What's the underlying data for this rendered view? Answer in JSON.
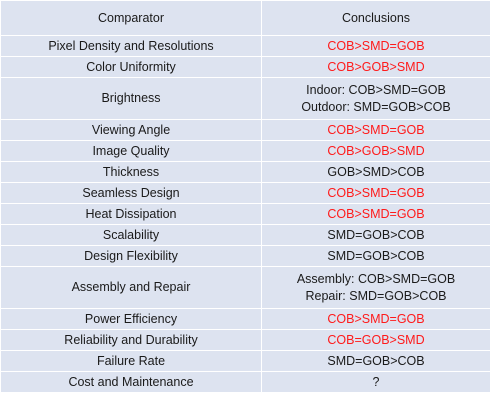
{
  "header": {
    "col1": "Comparator",
    "col2": "Conclusions"
  },
  "colors": {
    "red_conclusion": "#ff1a1a",
    "normal_text": "#1a1a1a",
    "cell_background": "#dde3f0"
  },
  "rows": [
    {
      "comparator": "Pixel Density and Resolutions",
      "lines": [
        "COB>SMD=GOB"
      ],
      "red": true
    },
    {
      "comparator": "Color Uniformity",
      "lines": [
        "COB>GOB>SMD"
      ],
      "red": true
    },
    {
      "comparator": "Brightness",
      "lines": [
        "Indoor: COB>SMD=GOB",
        "Outdoor: SMD=GOB>COB"
      ],
      "red": false
    },
    {
      "comparator": "Viewing Angle",
      "lines": [
        "COB>SMD=GOB"
      ],
      "red": true
    },
    {
      "comparator": "Image Quality",
      "lines": [
        "COB>GOB>SMD"
      ],
      "red": true
    },
    {
      "comparator": "Thickness",
      "lines": [
        "GOB>SMD>COB"
      ],
      "red": false
    },
    {
      "comparator": "Seamless Design",
      "lines": [
        "COB>SMD=GOB"
      ],
      "red": true
    },
    {
      "comparator": "Heat Dissipation",
      "lines": [
        "COB>SMD=GOB"
      ],
      "red": true
    },
    {
      "comparator": "Scalability",
      "lines": [
        "SMD=GOB>COB"
      ],
      "red": false
    },
    {
      "comparator": "Design Flexibility",
      "lines": [
        "SMD=GOB>COB"
      ],
      "red": false
    },
    {
      "comparator": "Assembly and Repair",
      "lines": [
        "Assembly: COB>SMD=GOB",
        "Repair: SMD=GOB>COB"
      ],
      "red": false
    },
    {
      "comparator": "Power Efficiency",
      "lines": [
        "COB>SMD=GOB"
      ],
      "red": true
    },
    {
      "comparator": "Reliability and Durability",
      "lines": [
        "COB=GOB>SMD"
      ],
      "red": true
    },
    {
      "comparator": "Failure Rate",
      "lines": [
        "SMD=GOB>COB"
      ],
      "red": false
    },
    {
      "comparator": "Cost and Maintenance",
      "lines": [
        "?"
      ],
      "red": false
    }
  ]
}
